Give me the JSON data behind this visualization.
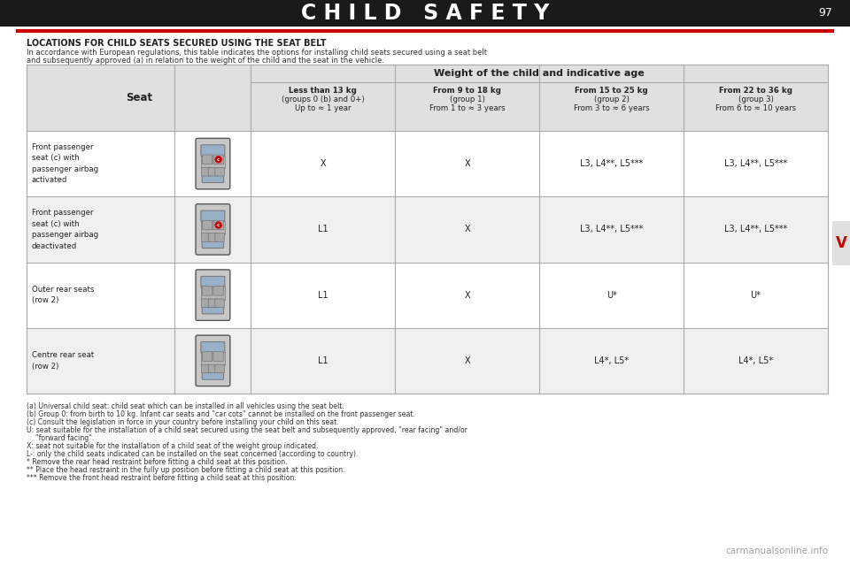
{
  "title": "C H I L D   S A F E T Y",
  "title_color": "#1a1a1a",
  "title_fontsize": 18,
  "red_line_color": "#cc0000",
  "bg_color": "#1a1a1a",
  "page_bg": "#1a1a1a",
  "content_bg": "#1a1a1a",
  "page_number": "97",
  "tab_label": "V",
  "tab_color": "#cc0000",
  "section_title": "LOCATIONS FOR CHILD SEATS SECURED USING THE SEAT BELT",
  "intro_line1": "In accordance with European regulations, this table indicates the options for installing child seats secured using a seat belt",
  "intro_line2": "and subsequently approved (a) in relation to the weight of the child and the seat in the vehicle.",
  "col_headers": [
    "Seat",
    "Less than 13 kg\n(groups 0 (b) and 0+)\nUp to ≈ 1 year",
    "From 9 to 18 kg\n(group 1)\nFrom 1 to ≈ 3 years",
    "From 15 to 25 kg\n(group 2)\nFrom 3 to ≈ 6 years",
    "From 22 to 36 kg\n(group 3)\nFrom 6 to ≈ 10 years"
  ],
  "rows": [
    {
      "seat_label": "Front passenger\nseat (c) with\npassenger airbag\nactivated",
      "image_type": "front",
      "values": [
        "X",
        "X",
        "L3, L4**, L5***",
        "L3, L4**, L5***"
      ]
    },
    {
      "seat_label": "Front passenger\nseat (c) with\npassenger airbag\ndeactivated",
      "image_type": "front",
      "values": [
        "L1",
        "X",
        "L3, L4**, L5***",
        "L3, L4**, L5***"
      ]
    },
    {
      "seat_label": "Outer rear seats\n(row 2)",
      "image_type": "rear_outer",
      "values": [
        "L1",
        "X",
        "U*",
        "U*"
      ]
    },
    {
      "seat_label": "Centre rear seat\n(row 2)",
      "image_type": "rear_centre",
      "values": [
        "L1",
        "X",
        "L4*, L5*",
        "L4*, L5*"
      ]
    }
  ],
  "footnotes": [
    "(a) Universal child seat: child seat which can be installed in all vehicles using the seat belt.",
    "(b) Group 0: from birth to 10 kg. Infant car seats and \"car cots\" cannot be installed on the front passenger seat.",
    "(c) Consult the legislation in force in your country before installing your child on this seat.",
    "U: seat suitable for the installation of a child seat secured using the seat belt and subsequently approved, \"rear facing\" and/or\n    \"forward facing\".",
    "X: seat not suitable for the installation of a child seat of the weight group indicated.",
    "L-: only the child seats indicated can be installed on the seat concerned (according to country).",
    "* Remove the rear head restraint before fitting a child seat at this position.",
    "** Place the head restraint in the fully up position before fitting a child seat at this position.",
    "*** Remove the front head restraint before fitting a child seat at this position."
  ],
  "watermark": "carmanualsonline.info"
}
